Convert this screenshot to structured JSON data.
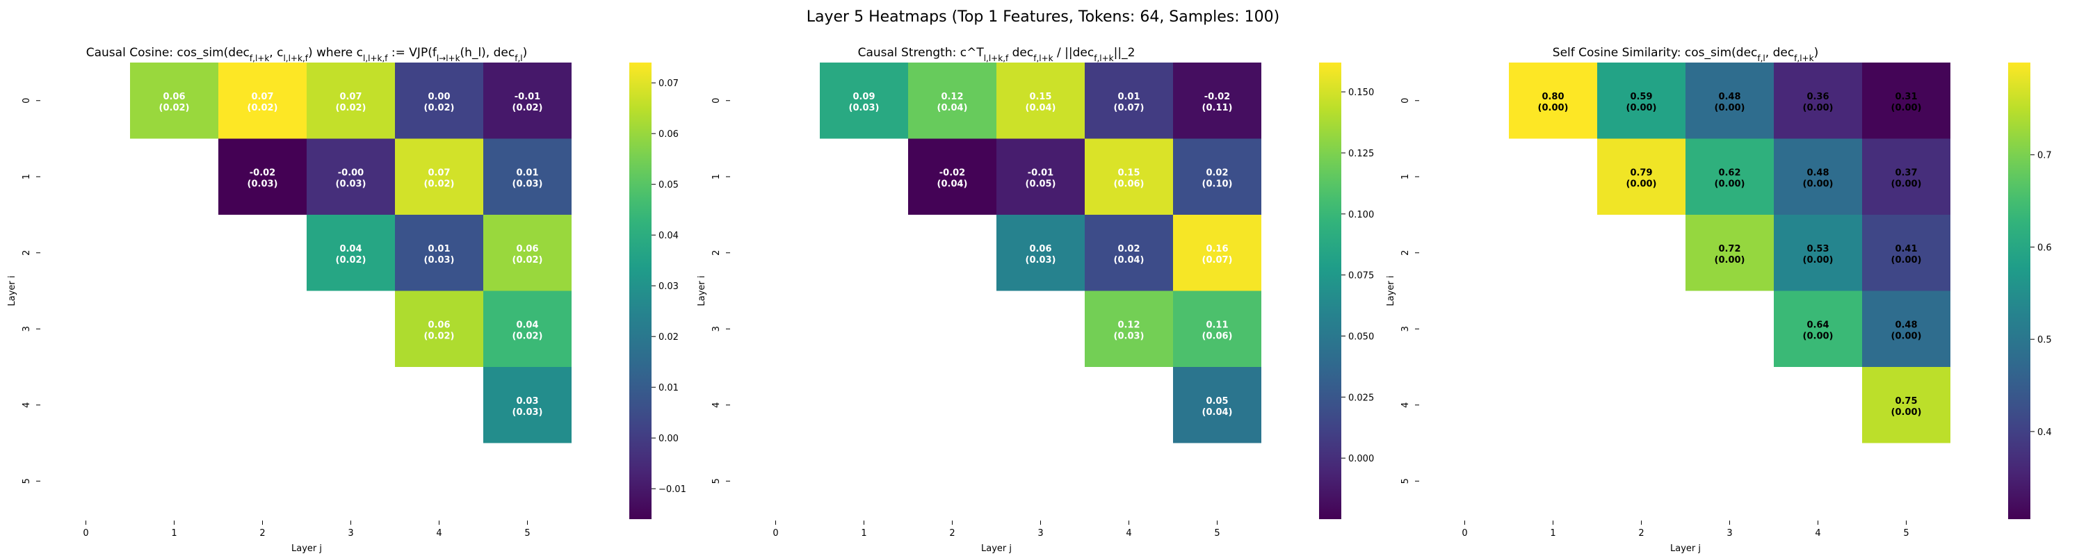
{
  "figure": {
    "suptitle": "Layer 5 Heatmaps (Top 1 Features, Tokens: 64, Samples: 100)"
  },
  "chart_data": [
    {
      "type": "heatmap",
      "title": "Causal Cosine: cos_sim(dec_{f,l+k}, c_{l,l+k,f}) where c_{l,l+k,f} := VJP(f_{l→l+k}(h_l), dec_{f,l})",
      "xlabel": "Layer j",
      "ylabel": "Layer i",
      "x_ticks": [
        "0",
        "1",
        "2",
        "3",
        "4",
        "5"
      ],
      "y_ticks": [
        "0",
        "1",
        "2",
        "3",
        "4",
        "5"
      ],
      "colorscale": "viridis",
      "vmin": -0.016,
      "vmax": 0.074,
      "colorbar_ticks": [
        -0.01,
        0.0,
        0.01,
        0.02,
        0.03,
        0.04,
        0.05,
        0.06,
        0.07
      ],
      "colorbar_tick_labels": [
        "−0.01",
        "0.00",
        "0.01",
        "0.02",
        "0.03",
        "0.04",
        "0.05",
        "0.06",
        "0.07"
      ],
      "cells": [
        {
          "i": 0,
          "j": 1,
          "value": 0.06,
          "std": 0.02,
          "label": "0.06",
          "std_label": "(0.02)"
        },
        {
          "i": 0,
          "j": 2,
          "value": 0.074,
          "std": 0.02,
          "label": "0.07",
          "std_label": "(0.02)"
        },
        {
          "i": 0,
          "j": 3,
          "value": 0.066,
          "std": 0.02,
          "label": "0.07",
          "std_label": "(0.02)"
        },
        {
          "i": 0,
          "j": 4,
          "value": 0.002,
          "std": 0.02,
          "label": "0.00",
          "std_label": "(0.02)"
        },
        {
          "i": 0,
          "j": 5,
          "value": -0.01,
          "std": 0.02,
          "label": "-0.01",
          "std_label": "(0.02)"
        },
        {
          "i": 1,
          "j": 2,
          "value": -0.016,
          "std": 0.03,
          "label": "-0.02",
          "std_label": "(0.03)"
        },
        {
          "i": 1,
          "j": 3,
          "value": -0.004,
          "std": 0.03,
          "label": "-0.00",
          "std_label": "(0.03)"
        },
        {
          "i": 1,
          "j": 4,
          "value": 0.068,
          "std": 0.02,
          "label": "0.07",
          "std_label": "(0.02)"
        },
        {
          "i": 1,
          "j": 5,
          "value": 0.008,
          "std": 0.03,
          "label": "0.01",
          "std_label": "(0.03)"
        },
        {
          "i": 2,
          "j": 3,
          "value": 0.037,
          "std": 0.02,
          "label": "0.04",
          "std_label": "(0.02)"
        },
        {
          "i": 2,
          "j": 4,
          "value": 0.007,
          "std": 0.03,
          "label": "0.01",
          "std_label": "(0.03)"
        },
        {
          "i": 2,
          "j": 5,
          "value": 0.06,
          "std": 0.02,
          "label": "0.06",
          "std_label": "(0.02)"
        },
        {
          "i": 3,
          "j": 4,
          "value": 0.063,
          "std": 0.02,
          "label": "0.06",
          "std_label": "(0.02)"
        },
        {
          "i": 3,
          "j": 5,
          "value": 0.045,
          "std": 0.02,
          "label": "0.04",
          "std_label": "(0.02)"
        },
        {
          "i": 4,
          "j": 5,
          "value": 0.028,
          "std": 0.03,
          "label": "0.03",
          "std_label": "(0.03)"
        }
      ]
    },
    {
      "type": "heatmap",
      "title": "Causal Strength: c^T_{l,l+k,f} dec_{f,l+k} / ||dec_{f,l+k}||_2",
      "xlabel": "Layer j",
      "ylabel": "Layer i",
      "x_ticks": [
        "0",
        "1",
        "2",
        "3",
        "4",
        "5"
      ],
      "y_ticks": [
        "0",
        "1",
        "2",
        "3",
        "4",
        "5"
      ],
      "colorscale": "viridis",
      "vmin": -0.025,
      "vmax": 0.162,
      "colorbar_ticks": [
        0.0,
        0.025,
        0.05,
        0.075,
        0.1,
        0.125,
        0.15
      ],
      "colorbar_tick_labels": [
        "0.000",
        "0.025",
        "0.050",
        "0.075",
        "0.100",
        "0.125",
        "0.150"
      ],
      "cells": [
        {
          "i": 0,
          "j": 1,
          "value": 0.088,
          "std": 0.03,
          "label": "0.09",
          "std_label": "(0.03)"
        },
        {
          "i": 0,
          "j": 2,
          "value": 0.118,
          "std": 0.04,
          "label": "0.12",
          "std_label": "(0.04)"
        },
        {
          "i": 0,
          "j": 3,
          "value": 0.148,
          "std": 0.04,
          "label": "0.15",
          "std_label": "(0.04)"
        },
        {
          "i": 0,
          "j": 4,
          "value": 0.008,
          "std": 0.07,
          "label": "0.01",
          "std_label": "(0.07)"
        },
        {
          "i": 0,
          "j": 5,
          "value": -0.018,
          "std": 0.11,
          "label": "-0.02",
          "std_label": "(0.11)"
        },
        {
          "i": 1,
          "j": 2,
          "value": -0.024,
          "std": 0.04,
          "label": "-0.02",
          "std_label": "(0.04)"
        },
        {
          "i": 1,
          "j": 3,
          "value": -0.01,
          "std": 0.05,
          "label": "-0.01",
          "std_label": "(0.05)"
        },
        {
          "i": 1,
          "j": 4,
          "value": 0.152,
          "std": 0.06,
          "label": "0.15",
          "std_label": "(0.06)"
        },
        {
          "i": 1,
          "j": 5,
          "value": 0.02,
          "std": 0.1,
          "label": "0.02",
          "std_label": "(0.10)"
        },
        {
          "i": 2,
          "j": 3,
          "value": 0.058,
          "std": 0.03,
          "label": "0.06",
          "std_label": "(0.03)"
        },
        {
          "i": 2,
          "j": 4,
          "value": 0.018,
          "std": 0.04,
          "label": "0.02",
          "std_label": "(0.04)"
        },
        {
          "i": 2,
          "j": 5,
          "value": 0.16,
          "std": 0.07,
          "label": "0.16",
          "std_label": "(0.07)"
        },
        {
          "i": 3,
          "j": 4,
          "value": 0.122,
          "std": 0.03,
          "label": "0.12",
          "std_label": "(0.03)"
        },
        {
          "i": 3,
          "j": 5,
          "value": 0.108,
          "std": 0.06,
          "label": "0.11",
          "std_label": "(0.06)"
        },
        {
          "i": 4,
          "j": 5,
          "value": 0.048,
          "std": 0.04,
          "label": "0.05",
          "std_label": "(0.04)"
        }
      ]
    },
    {
      "type": "heatmap",
      "title": "Self Cosine Similarity: cos_sim(dec_{f,l}, dec_{f,l+k})",
      "xlabel": "Layer j",
      "ylabel": "Layer i",
      "x_ticks": [
        "0",
        "1",
        "2",
        "3",
        "4",
        "5"
      ],
      "y_ticks": [
        "0",
        "1",
        "2",
        "3",
        "4",
        "5"
      ],
      "colorscale": "viridis",
      "vmin": 0.305,
      "vmax": 0.8,
      "colorbar_ticks": [
        0.4,
        0.5,
        0.6,
        0.7
      ],
      "colorbar_tick_labels": [
        "0.4",
        "0.5",
        "0.6",
        "0.7"
      ],
      "cells": [
        {
          "i": 0,
          "j": 1,
          "value": 0.8,
          "std": 0.0,
          "label": "0.80",
          "std_label": "(0.00)"
        },
        {
          "i": 0,
          "j": 2,
          "value": 0.59,
          "std": 0.0,
          "label": "0.59",
          "std_label": "(0.00)"
        },
        {
          "i": 0,
          "j": 3,
          "value": 0.48,
          "std": 0.0,
          "label": "0.48",
          "std_label": "(0.00)"
        },
        {
          "i": 0,
          "j": 4,
          "value": 0.36,
          "std": 0.0,
          "label": "0.36",
          "std_label": "(0.00)"
        },
        {
          "i": 0,
          "j": 5,
          "value": 0.31,
          "std": 0.0,
          "label": "0.31",
          "std_label": "(0.00)"
        },
        {
          "i": 1,
          "j": 2,
          "value": 0.79,
          "std": 0.0,
          "label": "0.79",
          "std_label": "(0.00)"
        },
        {
          "i": 1,
          "j": 3,
          "value": 0.62,
          "std": 0.0,
          "label": "0.62",
          "std_label": "(0.00)"
        },
        {
          "i": 1,
          "j": 4,
          "value": 0.48,
          "std": 0.0,
          "label": "0.48",
          "std_label": "(0.00)"
        },
        {
          "i": 1,
          "j": 5,
          "value": 0.37,
          "std": 0.0,
          "label": "0.37",
          "std_label": "(0.00)"
        },
        {
          "i": 2,
          "j": 3,
          "value": 0.72,
          "std": 0.0,
          "label": "0.72",
          "std_label": "(0.00)"
        },
        {
          "i": 2,
          "j": 4,
          "value": 0.53,
          "std": 0.0,
          "label": "0.53",
          "std_label": "(0.00)"
        },
        {
          "i": 2,
          "j": 5,
          "value": 0.41,
          "std": 0.0,
          "label": "0.41",
          "std_label": "(0.00)"
        },
        {
          "i": 3,
          "j": 4,
          "value": 0.64,
          "std": 0.0,
          "label": "0.64",
          "std_label": "(0.00)"
        },
        {
          "i": 3,
          "j": 5,
          "value": 0.48,
          "std": 0.0,
          "label": "0.48",
          "std_label": "(0.00)"
        },
        {
          "i": 4,
          "j": 5,
          "value": 0.75,
          "std": 0.0,
          "label": "0.75",
          "std_label": "(0.00)"
        }
      ]
    }
  ]
}
